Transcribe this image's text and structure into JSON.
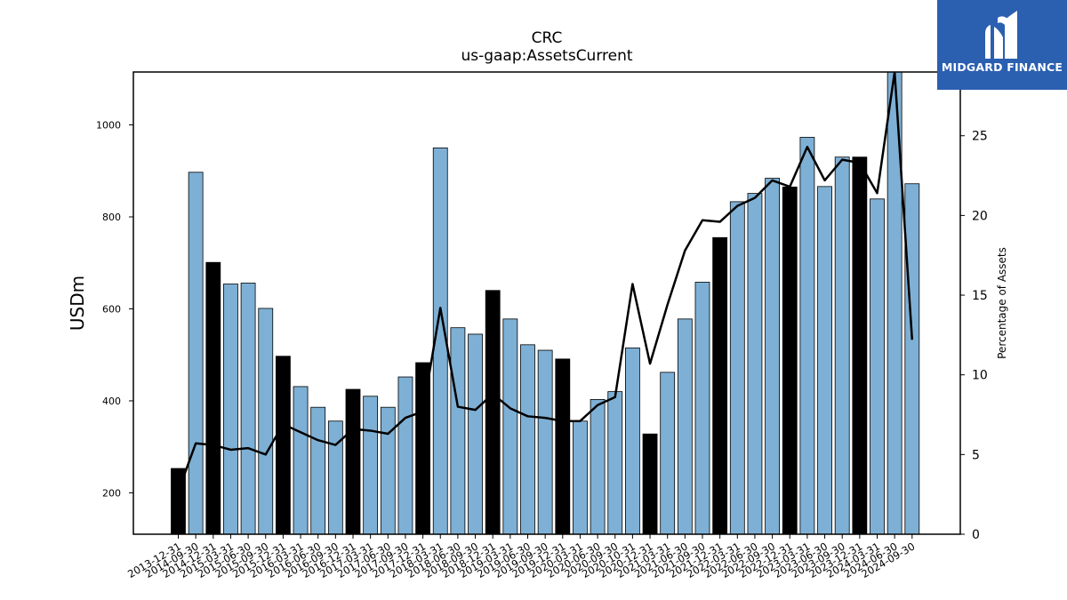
{
  "chart_data": {
    "type": "bar",
    "title": "CRC",
    "subtitle": "us-gaap:AssetsCurrent",
    "ylabel": "USDm",
    "y2label": "Percentage of Assets",
    "ylim": [
      110,
      1115
    ],
    "y2lim": [
      0,
      29
    ],
    "yticks": [
      200,
      400,
      600,
      800,
      1000
    ],
    "y2ticks": [
      0,
      5,
      10,
      15,
      20,
      25
    ],
    "colors": {
      "bar": "#7eb0d5",
      "bar_highlight": "#000000",
      "line": "#000000"
    },
    "categories": [
      "2013-12-31",
      "2014-09-30",
      "2014-12-31",
      "2015-03-31",
      "2015-06-30",
      "2015-09-30",
      "2015-12-31",
      "2016-03-31",
      "2016-06-30",
      "2016-09-30",
      "2016-12-31",
      "2017-03-31",
      "2017-06-30",
      "2017-09-30",
      "2017-12-31",
      "2018-03-31",
      "2018-06-30",
      "2018-09-30",
      "2018-12-31",
      "2019-03-31",
      "2019-06-30",
      "2019-09-30",
      "2019-12-31",
      "2020-03-31",
      "2020-06-30",
      "2020-09-30",
      "2020-10-31",
      "2020-12-31",
      "2021-03-31",
      "2021-06-30",
      "2021-09-30",
      "2021-12-31",
      "2022-03-31",
      "2022-06-30",
      "2022-09-30",
      "2022-12-31",
      "2023-03-31",
      "2023-06-30",
      "2023-09-30",
      "2023-12-31",
      "2024-03-31",
      "2024-06-30",
      "2024-09-30"
    ],
    "series": [
      {
        "type": "bar",
        "values": [
          253,
          897,
          701,
          654,
          656,
          601,
          497,
          431,
          386,
          356,
          425,
          410,
          386,
          452,
          483,
          950,
          559,
          545,
          640,
          578,
          522,
          510,
          491,
          356,
          403,
          420,
          515,
          328,
          462,
          578,
          658,
          755,
          833,
          851,
          884,
          865,
          973,
          866,
          930,
          930,
          839,
          1115,
          872
        ],
        "highlight": [
          true,
          false,
          true,
          false,
          false,
          false,
          true,
          false,
          false,
          false,
          true,
          false,
          false,
          false,
          true,
          false,
          false,
          false,
          true,
          false,
          false,
          false,
          true,
          false,
          false,
          false,
          false,
          true,
          false,
          false,
          false,
          true,
          false,
          false,
          false,
          true,
          false,
          false,
          false,
          true,
          false,
          false,
          false
        ]
      },
      {
        "type": "line",
        "axis": "right",
        "values": [
          2.7,
          5.7,
          5.6,
          5.3,
          5.4,
          5.0,
          6.9,
          6.4,
          5.9,
          5.6,
          6.6,
          6.5,
          6.3,
          7.3,
          7.7,
          14.2,
          8.0,
          7.8,
          8.8,
          7.9,
          7.4,
          7.3,
          7.1,
          7.1,
          8.1,
          8.6,
          15.7,
          10.7,
          14.4,
          17.8,
          19.7,
          19.6,
          20.6,
          21.1,
          22.2,
          21.8,
          24.3,
          22.2,
          23.5,
          23.3,
          21.4,
          29.0,
          12.2
        ]
      }
    ]
  },
  "logo": {
    "text": "MIDGARD FINANCE"
  }
}
